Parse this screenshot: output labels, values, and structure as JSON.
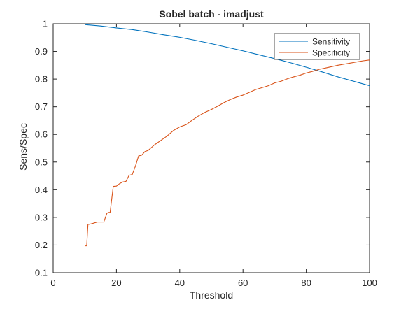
{
  "chart_data": {
    "type": "line",
    "title": "Sobel batch - imadjust",
    "xlabel": "Threshold",
    "ylabel": "Sens/Spec",
    "xlim": [
      0,
      100
    ],
    "ylim": [
      0.1,
      1
    ],
    "xticks": [
      0,
      20,
      40,
      60,
      80,
      100
    ],
    "xtick_labels": [
      "0",
      "20",
      "40",
      "60",
      "80",
      "100"
    ],
    "yticks": [
      0.1,
      0.2,
      0.3,
      0.4,
      0.5,
      0.6,
      0.7,
      0.8,
      0.9,
      1
    ],
    "ytick_labels": [
      "0.1",
      "0.2",
      "0.3",
      "0.4",
      "0.5",
      "0.6",
      "0.7",
      "0.8",
      "0.9",
      "1"
    ],
    "grid": false,
    "legend_position": "top-right",
    "series": [
      {
        "name": "Sensitivity",
        "color": "#0072BD",
        "x": [
          10,
          15,
          20,
          25,
          30,
          35,
          40,
          45,
          50,
          55,
          60,
          65,
          70,
          75,
          80,
          85,
          90,
          95,
          100
        ],
        "y": [
          0.997,
          0.992,
          0.985,
          0.979,
          0.97,
          0.96,
          0.951,
          0.94,
          0.928,
          0.915,
          0.902,
          0.888,
          0.874,
          0.859,
          0.843,
          0.826,
          0.808,
          0.792,
          0.776
        ]
      },
      {
        "name": "Specificity",
        "color": "#D95319",
        "x": [
          10,
          10.6,
          11,
          11.5,
          12.5,
          13,
          14,
          15,
          16,
          17,
          17.5,
          18,
          19,
          20,
          21,
          22,
          23,
          24,
          25,
          26,
          27,
          28,
          29,
          30,
          32,
          34,
          36,
          38,
          40,
          42,
          44,
          46,
          48,
          50,
          52,
          54,
          56,
          58,
          60,
          62,
          64,
          66,
          68,
          70,
          72,
          74,
          76,
          78,
          80,
          82,
          84,
          86,
          88,
          90,
          92,
          94,
          96,
          98,
          100
        ],
        "y": [
          0.197,
          0.197,
          0.275,
          0.275,
          0.278,
          0.28,
          0.283,
          0.283,
          0.283,
          0.315,
          0.318,
          0.318,
          0.412,
          0.413,
          0.422,
          0.428,
          0.43,
          0.452,
          0.455,
          0.485,
          0.522,
          0.525,
          0.538,
          0.542,
          0.562,
          0.578,
          0.594,
          0.614,
          0.627,
          0.635,
          0.652,
          0.667,
          0.68,
          0.69,
          0.702,
          0.715,
          0.726,
          0.735,
          0.742,
          0.752,
          0.762,
          0.769,
          0.776,
          0.786,
          0.792,
          0.801,
          0.808,
          0.814,
          0.822,
          0.828,
          0.835,
          0.84,
          0.845,
          0.85,
          0.854,
          0.858,
          0.862,
          0.866,
          0.869
        ]
      }
    ]
  }
}
